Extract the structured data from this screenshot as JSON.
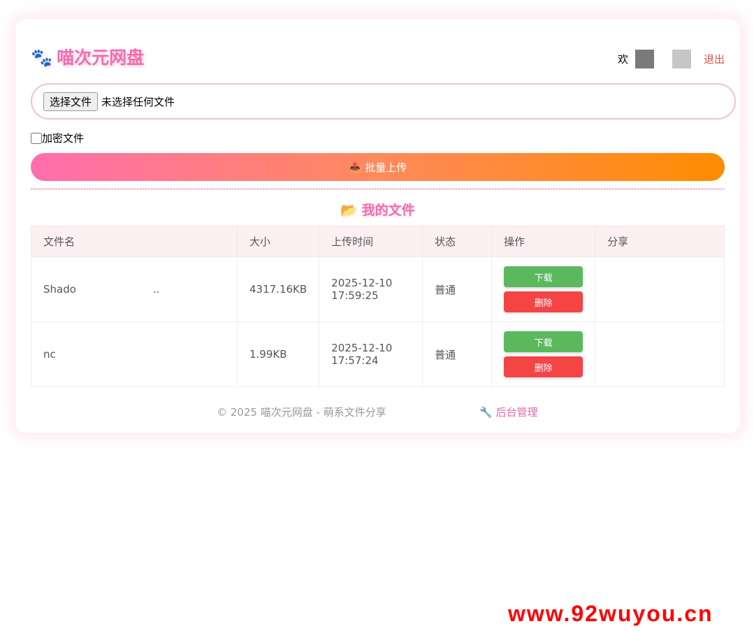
{
  "header": {
    "title": "喵次元网盘",
    "paw_icon": "🐾",
    "greeting": "欢",
    "logout": "退出"
  },
  "upload": {
    "choose_button": "选择文件",
    "no_file": "未选择任何文件",
    "encrypt_label": "加密文件",
    "batch_button": "📤 批量上传"
  },
  "files": {
    "section_title": "📂 我的文件",
    "columns": [
      "文件名",
      "大小",
      "上传时间",
      "状态",
      "操作",
      "分享"
    ],
    "rows": [
      {
        "name": "Shado",
        "name_tail": "..",
        "size": "4317.16KB",
        "date": "2025-12-10",
        "time": "17:59:25",
        "status": "普通",
        "download": "下载",
        "delete": "删除",
        "share": ""
      },
      {
        "name": "nc",
        "name_tail": "",
        "size": "1.99KB",
        "date": "2025-12-10",
        "time": "17:57:24",
        "status": "普通",
        "download": "下载",
        "delete": "删除",
        "share": ""
      }
    ]
  },
  "footer": {
    "text": "© 2025 喵次元网盘 - 萌系文件分享",
    "admin_link": "🔧 后台管理"
  },
  "watermark": "www.92wuyou.cn",
  "colors": {
    "accent": "#f06fae",
    "download": "#5cb85c",
    "delete": "#f44444",
    "logout": "#d9534f"
  }
}
